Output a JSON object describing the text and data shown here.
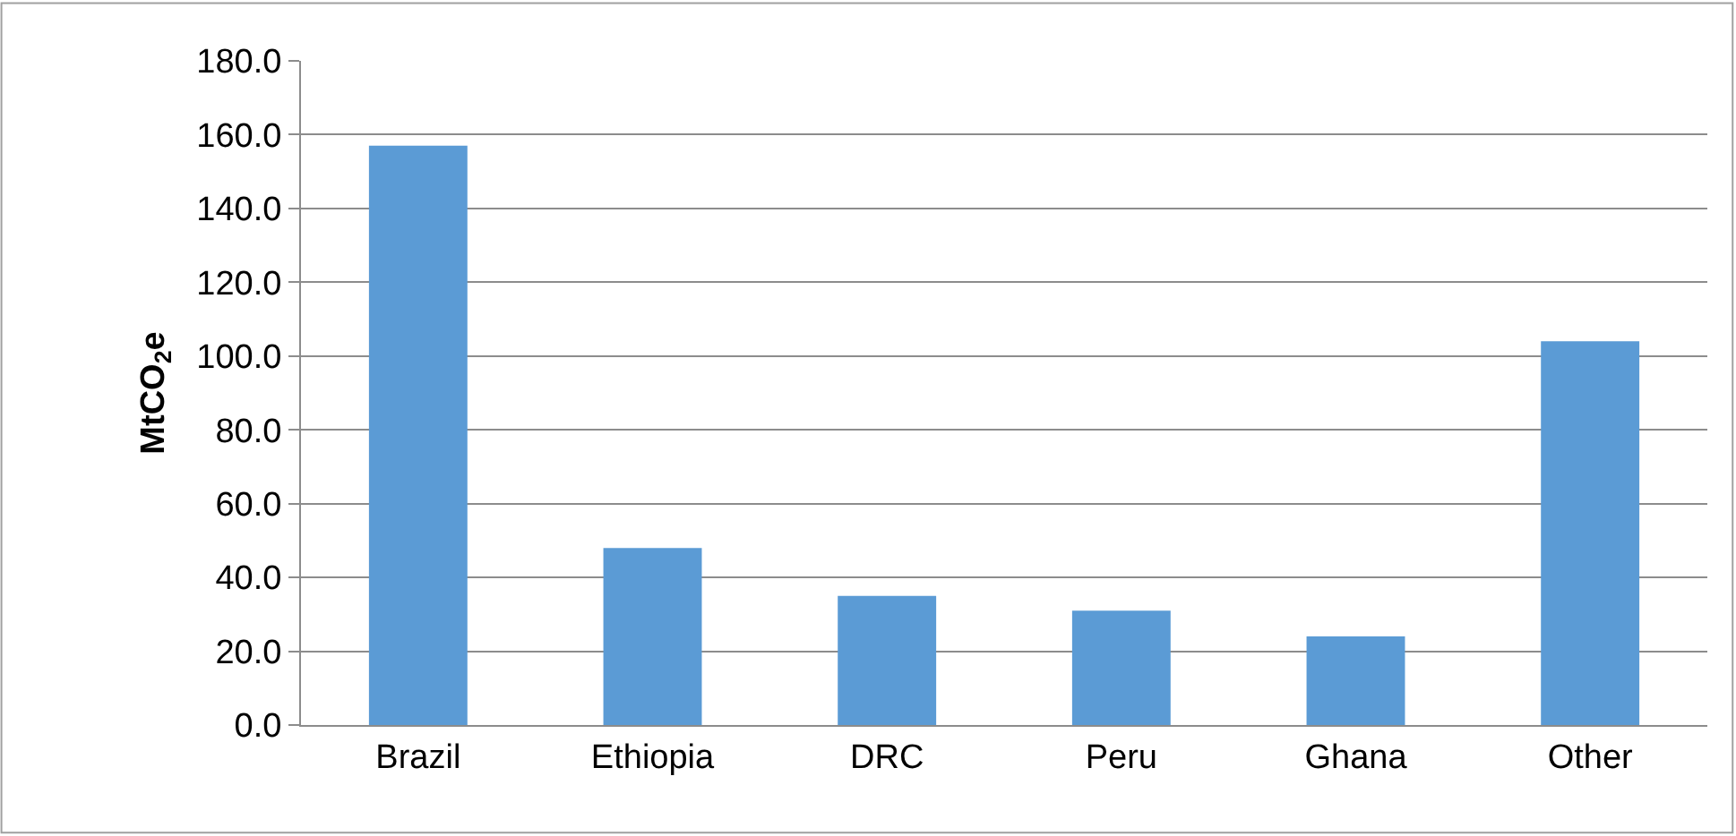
{
  "chart_data": {
    "type": "bar",
    "ylabel": "MtCO$_{2}$e",
    "categories": [
      "Brazil",
      "Ethiopia",
      "DRC",
      "Peru",
      "Ghana",
      "Other"
    ],
    "values": [
      157,
      48,
      35,
      31,
      24,
      104
    ],
    "color": "#5b9bd5",
    "ylim": [
      0,
      180
    ],
    "yticks": [
      {
        "value": 0,
        "label": "0.0"
      },
      {
        "value": 20,
        "label": "20.0"
      },
      {
        "value": 40,
        "label": "40.0"
      },
      {
        "value": 60,
        "label": "60.0"
      },
      {
        "value": 80,
        "label": "80.0"
      },
      {
        "value": 100,
        "label": "100.0"
      },
      {
        "value": 120,
        "label": "120.0"
      },
      {
        "value": 140,
        "label": "140.0"
      },
      {
        "value": 160,
        "label": "160.0"
      },
      {
        "value": 180,
        "label": "180.0"
      }
    ],
    "grid": "y"
  }
}
